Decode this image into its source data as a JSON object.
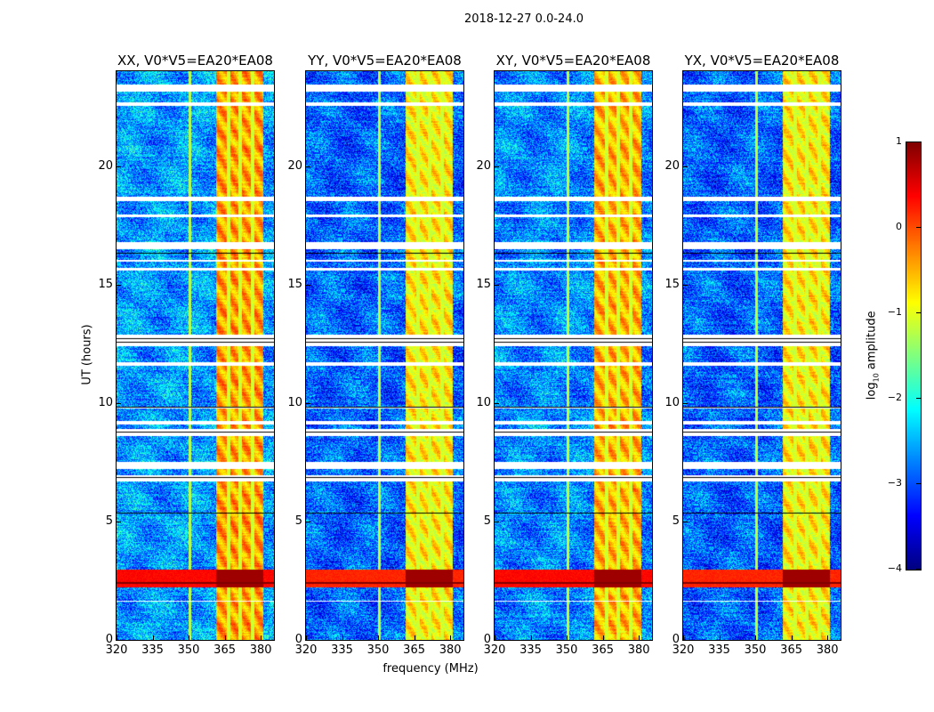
{
  "chart_data": {
    "type": "heatmap",
    "title": "2018-12-27 0.0-24.0",
    "xlabel": "frequency (MHz)",
    "ylabel": "UT (hours)",
    "xlim": [
      320,
      385.5
    ],
    "ylim": [
      0,
      24
    ],
    "xticks": [
      320,
      335,
      350,
      365,
      380
    ],
    "yticks": [
      0,
      5,
      10,
      15,
      20
    ],
    "panels": [
      {
        "title": "XX, V0*V5=EA20*EA08",
        "band_level": -0.4,
        "background_level": -2.6
      },
      {
        "title": "YY, V0*V5=EA20*EA08",
        "band_level": -0.8,
        "background_level": -2.9
      },
      {
        "title": "XY, V0*V5=EA20*EA08",
        "band_level": -0.5,
        "background_level": -2.7
      },
      {
        "title": "YX, V0*V5=EA20*EA08",
        "band_level": -0.8,
        "background_level": -2.9
      }
    ],
    "features": {
      "rfi_band_mhz": [
        361.5,
        381
      ],
      "rfi_channel_edges_mhz": [
        366.5,
        371.5,
        376.5
      ],
      "strong_rfi_time_hours": [
        2.2,
        2.95
      ],
      "no_data_time_hours": [
        2.95,
        5.3
      ],
      "flagged_white_hours": [
        [
          23.15,
          23.45
        ],
        [
          22.55,
          22.7
        ],
        [
          18.5,
          18.7
        ],
        [
          17.85,
          17.95
        ],
        [
          16.5,
          16.8
        ],
        [
          15.95,
          16.05
        ],
        [
          15.6,
          15.7
        ],
        [
          12.4,
          12.9
        ],
        [
          11.55,
          11.7
        ],
        [
          9.75,
          9.85
        ],
        [
          9.1,
          9.25
        ],
        [
          8.6,
          8.9
        ],
        [
          7.2,
          7.5
        ],
        [
          6.7,
          6.95
        ],
        [
          1.6,
          1.65
        ]
      ],
      "flagged_black_hours": [
        [
          12.55,
          12.6
        ],
        [
          12.7,
          12.75
        ],
        [
          9.8,
          9.83
        ],
        [
          8.75,
          8.78
        ],
        [
          7.35,
          7.38
        ],
        [
          6.85,
          6.88
        ],
        [
          5.35,
          5.38
        ],
        [
          1.45,
          1.48
        ],
        [
          16.3,
          16.33
        ]
      ]
    },
    "colorbar": {
      "label_prefix": "log",
      "label_sub": "10",
      "label_suffix": " amplitude",
      "range": [
        -4,
        1
      ],
      "ticks": [
        "1",
        "0",
        "−1",
        "−2",
        "−3",
        "−4"
      ],
      "colormap": "jet"
    }
  }
}
